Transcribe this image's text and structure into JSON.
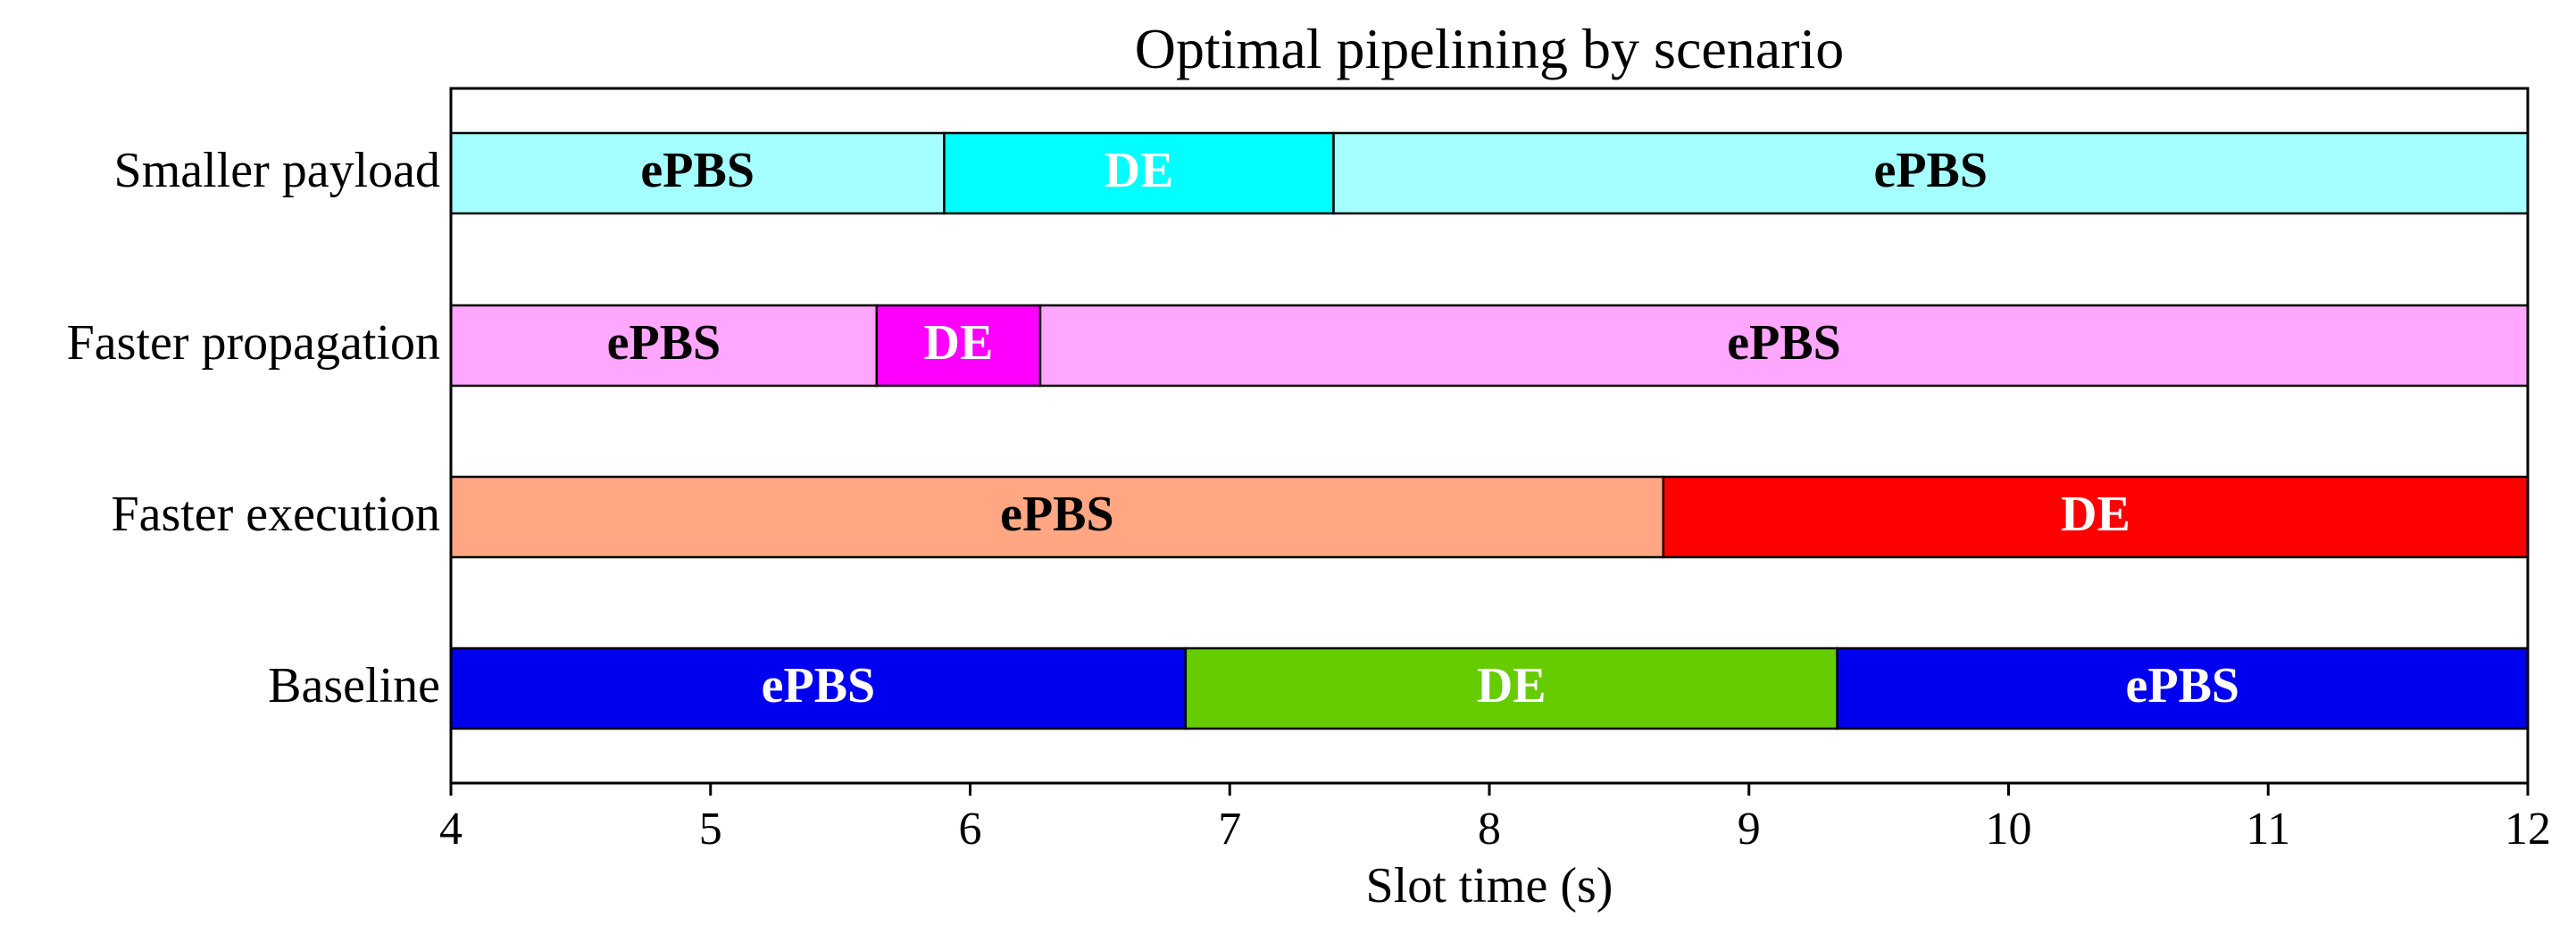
{
  "chart_data": {
    "type": "bar",
    "orientation": "horizontal-stacked",
    "title": "Optimal pipelining by scenario",
    "xlabel": "Slot time (s)",
    "ylabel": "",
    "xlim": [
      4,
      12
    ],
    "xticks": [
      4,
      5,
      6,
      7,
      8,
      9,
      10,
      11,
      12
    ],
    "grid": false,
    "legend": "none",
    "categories": [
      "Smaller payload",
      "Faster propagation",
      "Faster execution",
      "Baseline"
    ],
    "rows": [
      {
        "category": "Smaller payload",
        "segments": [
          {
            "label": "ePBS",
            "start": 4.0,
            "end": 5.9,
            "color": "#a6ffff",
            "text_color": "#000000"
          },
          {
            "label": "DE",
            "start": 5.9,
            "end": 7.4,
            "color": "#00ffff",
            "text_color": "#ffffff"
          },
          {
            "label": "ePBS",
            "start": 7.4,
            "end": 12.0,
            "color": "#a6ffff",
            "text_color": "#000000"
          }
        ]
      },
      {
        "category": "Faster propagation",
        "segments": [
          {
            "label": "ePBS",
            "start": 4.0,
            "end": 5.64,
            "color": "#ffa6ff",
            "text_color": "#000000"
          },
          {
            "label": "DE",
            "start": 5.64,
            "end": 6.27,
            "color": "#ff00ff",
            "text_color": "#ffffff"
          },
          {
            "label": "ePBS",
            "start": 6.27,
            "end": 12.0,
            "color": "#ffa6ff",
            "text_color": "#000000"
          }
        ]
      },
      {
        "category": "Faster execution",
        "segments": [
          {
            "label": "ePBS",
            "start": 4.0,
            "end": 8.67,
            "color": "#ffa783",
            "text_color": "#000000"
          },
          {
            "label": "DE",
            "start": 8.67,
            "end": 12.0,
            "color": "#ff0000",
            "text_color": "#ffffff"
          }
        ]
      },
      {
        "category": "Baseline",
        "segments": [
          {
            "label": "ePBS",
            "start": 4.0,
            "end": 6.83,
            "color": "#0000ee",
            "text_color": "#ffffff"
          },
          {
            "label": "DE",
            "start": 6.83,
            "end": 9.34,
            "color": "#66cc00",
            "text_color": "#ffffff"
          },
          {
            "label": "ePBS",
            "start": 9.34,
            "end": 12.0,
            "color": "#0000ee",
            "text_color": "#ffffff"
          }
        ]
      }
    ]
  }
}
